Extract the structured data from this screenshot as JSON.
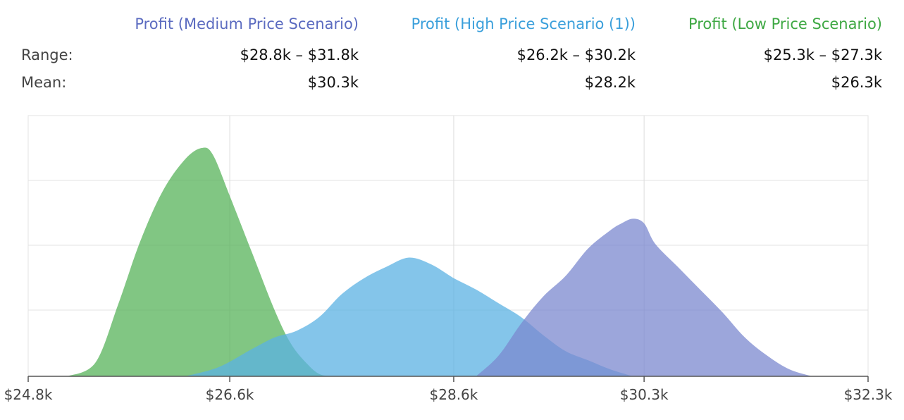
{
  "stats": {
    "row_labels": {
      "range": "Range:",
      "mean": "Mean:"
    },
    "columns": [
      {
        "title": "Profit (Medium Price Scenario)",
        "range": "$28.8k – $31.8k",
        "mean": "$30.3k",
        "color": "#5b6bc0"
      },
      {
        "title": "Profit (High Price Scenario (1))",
        "range": "$26.2k – $30.2k",
        "mean": "$28.2k",
        "color": "#3a9fdb"
      },
      {
        "title": "Profit (Low Price Scenario)",
        "range": "$25.3k – $27.3k",
        "mean": "$26.3k",
        "color": "#3ea843"
      }
    ]
  },
  "chart_data": {
    "type": "area",
    "title": "",
    "xlabel": "",
    "ylabel": "",
    "xlim": [
      24.8,
      32.3
    ],
    "ylim": [
      0,
      1
    ],
    "x_ticks": [
      {
        "value": 24.8,
        "label": "$24.8k"
      },
      {
        "value": 26.6,
        "label": "$26.6k"
      },
      {
        "value": 28.6,
        "label": "$28.6k"
      },
      {
        "value": 30.3,
        "label": "$30.3k"
      },
      {
        "value": 32.3,
        "label": "$32.3k"
      }
    ],
    "grid": true,
    "series": [
      {
        "name": "Profit (Low Price Scenario)",
        "color": "#57b35a",
        "x": [
          25.15,
          25.4,
          25.6,
          25.8,
          26.0,
          26.2,
          26.35,
          26.45,
          26.6,
          26.8,
          27.0,
          27.15,
          27.3,
          27.4,
          27.5
        ],
        "y": [
          0.0,
          0.06,
          0.31,
          0.59,
          0.81,
          0.95,
          1.0,
          0.97,
          0.79,
          0.54,
          0.29,
          0.14,
          0.05,
          0.01,
          0.0
        ]
      },
      {
        "name": "Profit (High Price Scenario (1))",
        "color": "#5bb1e3",
        "x": [
          26.2,
          26.5,
          26.8,
          27.0,
          27.2,
          27.4,
          27.6,
          27.8,
          28.0,
          28.2,
          28.4,
          28.6,
          28.8,
          29.0,
          29.2,
          29.4,
          29.6,
          29.8,
          30.0,
          30.2
        ],
        "y": [
          0.0,
          0.04,
          0.12,
          0.17,
          0.2,
          0.26,
          0.36,
          0.43,
          0.48,
          0.52,
          0.49,
          0.43,
          0.38,
          0.32,
          0.26,
          0.18,
          0.11,
          0.07,
          0.03,
          0.0
        ]
      },
      {
        "name": "Profit (Medium Price Scenario)",
        "color": "#7b88cf",
        "x": [
          28.8,
          29.0,
          29.2,
          29.4,
          29.6,
          29.8,
          30.0,
          30.1,
          30.2,
          30.3,
          30.4,
          30.6,
          30.8,
          31.0,
          31.2,
          31.4,
          31.6,
          31.8
        ],
        "y": [
          0.0,
          0.09,
          0.23,
          0.35,
          0.44,
          0.56,
          0.64,
          0.67,
          0.69,
          0.67,
          0.58,
          0.48,
          0.38,
          0.28,
          0.17,
          0.09,
          0.03,
          0.0
        ]
      }
    ]
  }
}
